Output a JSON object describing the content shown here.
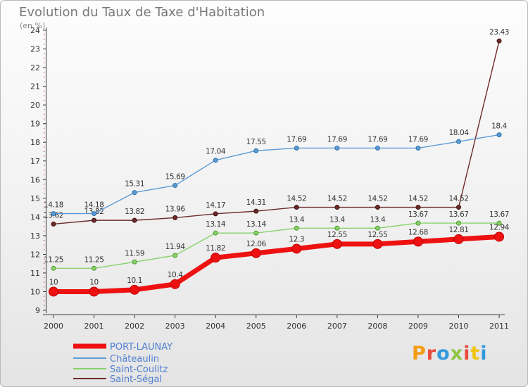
{
  "chart_title": "Evolution du Taux de Taxe d'Habitation",
  "chart_unit": "(en %)",
  "logo": {
    "text": "Proxiti",
    "letter_colors": [
      "#f39c12",
      "#e74c3c",
      "#3498db",
      "#8dc63f",
      "#e74c3c",
      "#f1c40f",
      "#3498db"
    ]
  },
  "chart_data": {
    "type": "line",
    "title": "Evolution du Taux de Taxe d'Habitation",
    "subtitle": "(en %)",
    "xlabel": "",
    "ylabel": "",
    "x": [
      "2000",
      "2001",
      "2002",
      "2003",
      "2004",
      "2005",
      "2006",
      "2007",
      "2008",
      "2009",
      "2010",
      "2011"
    ],
    "ylim": [
      9,
      24
    ],
    "yticks": [
      "9",
      "10",
      "11",
      "12",
      "13",
      "14",
      "15",
      "16",
      "17",
      "18",
      "19",
      "20",
      "21",
      "22",
      "23",
      "24"
    ],
    "grid": false,
    "legend_position": "bottom-left",
    "series": [
      {
        "name": "Saint-Ségal",
        "color": "#6e2a2a",
        "values": [
          13.62,
          13.82,
          13.82,
          13.96,
          14.17,
          14.31,
          14.52,
          14.52,
          14.52,
          14.52,
          14.52,
          23.43
        ],
        "labels": [
          "13.62",
          "13.82",
          "13.82",
          "13.96",
          "14.17",
          "14.31",
          "14.52",
          "14.52",
          "14.52",
          "14.52",
          "14.52",
          "23.43"
        ]
      },
      {
        "name": "Saint-Coulitz",
        "color": "#88d26a",
        "values": [
          11.25,
          11.25,
          11.59,
          11.94,
          13.14,
          13.14,
          13.4,
          13.4,
          13.4,
          13.67,
          13.67,
          13.67
        ],
        "labels": [
          "11.25",
          "11.25",
          "11.59",
          "11.94",
          "13.14",
          "13.14",
          "13.4",
          "13.4",
          "13.4",
          "13.67",
          "13.67",
          "13.67"
        ]
      },
      {
        "name": "Châteaulin",
        "color": "#5b9bd5",
        "values": [
          14.18,
          14.18,
          15.31,
          15.69,
          17.04,
          17.55,
          17.69,
          17.69,
          17.69,
          17.69,
          18.04,
          18.4
        ],
        "labels": [
          "14.18",
          "14.18",
          "15.31",
          "15.69",
          "17.04",
          "17.55",
          "17.69",
          "17.69",
          "17.69",
          "17.69",
          "18.04",
          "18.4"
        ]
      },
      {
        "name": "PORT-LAUNAY",
        "color": "#ee1111",
        "values": [
          10,
          10,
          10.1,
          10.4,
          11.82,
          12.06,
          12.3,
          12.55,
          12.55,
          12.68,
          12.81,
          12.94
        ],
        "labels": [
          "10",
          "10",
          "10.1",
          "10.4",
          "11.82",
          "12.06",
          "12.3",
          "12.55",
          "12.55",
          "12.68",
          "12.81",
          "12.94"
        ]
      }
    ],
    "legend_order": [
      "PORT-LAUNAY",
      "Châteaulin",
      "Saint-Coulitz",
      "Saint-Ségal"
    ]
  }
}
